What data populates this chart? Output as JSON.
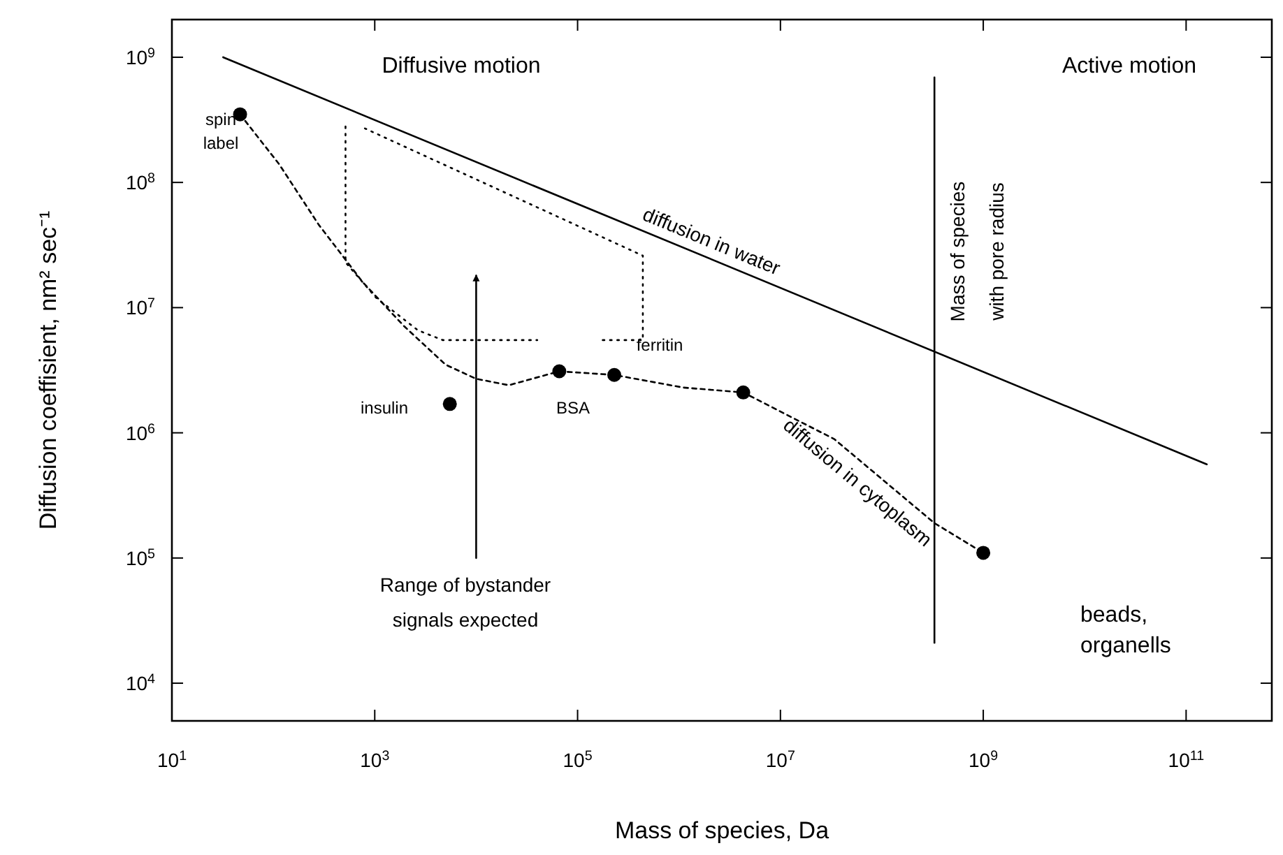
{
  "chart_data": {
    "type": "line",
    "xlabel": "Mass of species, Da",
    "ylabel": "Diffusion coeffisient, nm² sec⁻¹",
    "log": "xy",
    "grid": false,
    "xlim": [
      10,
      700000000000.0
    ],
    "ylim": [
      5000,
      2000000000.0
    ],
    "xticks": [
      {
        "value": 10,
        "label": "10$^{1}$"
      },
      {
        "value": 1000,
        "label": "10$^{3}$"
      },
      {
        "value": 100000,
        "label": "10$^{5}$"
      },
      {
        "value": 10000000,
        "label": "10$^{7}$"
      },
      {
        "value": 1000000000,
        "label": "10$^{9}$"
      },
      {
        "value": 100000000000,
        "label": "10$^{11}$"
      }
    ],
    "yticks": [
      {
        "value": 10000,
        "label": "10$^{4}$"
      },
      {
        "value": 100000,
        "label": "10$^{5}$"
      },
      {
        "value": 1000000,
        "label": "10$^{6}$"
      },
      {
        "value": 10000000,
        "label": "10$^{7}$"
      },
      {
        "value": 100000000,
        "label": "10$^{8}$"
      },
      {
        "value": 1000000000,
        "label": "10$^{9}$"
      }
    ],
    "series": [
      {
        "name": "diffusion in water",
        "color": "#000000",
        "line_style": "solid",
        "marker": "none",
        "x": [
          32,
          160000000000.0
        ],
        "values": [
          1000000000.0,
          560000.0
        ]
      },
      {
        "name": "diffusion in cytoplasm",
        "color": "#000000",
        "line_style": "dashed",
        "marker": "none",
        "x": [
          47,
          114,
          280,
          760,
          1950,
          5000,
          10000,
          21000,
          66000,
          230000,
          1100000,
          4300000,
          34000000,
          330000000,
          1000000000
        ],
        "values": [
          350000000.0,
          140000000.0,
          46000000.0,
          16000000.0,
          7100000.0,
          3500000.0,
          2700000.0,
          2400000.0,
          3100000.0,
          2900000.0,
          2300000.0,
          2100000.0,
          890000.0,
          190000.0,
          110000.0
        ]
      },
      {
        "color": "#000000",
        "line_style": "dotted",
        "marker": "none",
        "x": [
          515,
          515,
          1030,
          2660,
          4690,
          40000,
          100000,
          177000,
          440000,
          440000,
          800
        ],
        "values": [
          280000000.0,
          23000000.0,
          12000000.0,
          6600000.0,
          5500000.0,
          5500000.0,
          null,
          5500000.0,
          5500000.0,
          26000000.0,
          270000000.0
        ]
      },
      {
        "color": "#000000",
        "line_style": "solid",
        "marker": "none",
        "x": [
          10000,
          10000
        ],
        "values": [
          100000.0,
          18000000.0
        ]
      },
      {
        "color": "#000000",
        "line_style": "solid",
        "marker": "none",
        "x": [
          330000000.0,
          330000000.0
        ],
        "values": [
          21000.0,
          690000000.0
        ]
      },
      {
        "type": "scatter",
        "color": "#000000",
        "marker": "circle",
        "x": [
          47,
          5500,
          66000,
          230000,
          4300000,
          1000000000
        ],
        "values": [
          350000000.0,
          1700000.0,
          3100000.0,
          2900000.0,
          2100000.0,
          110000.0
        ]
      }
    ],
    "annotations": [
      "Diffusive motion",
      "Active motion",
      "beads,\norganells",
      "spin\nlabel",
      "insulin",
      "BSA",
      "ferritin",
      "Range of bystander\nsignals expected",
      "Mass of species\nwith pore radius"
    ]
  }
}
